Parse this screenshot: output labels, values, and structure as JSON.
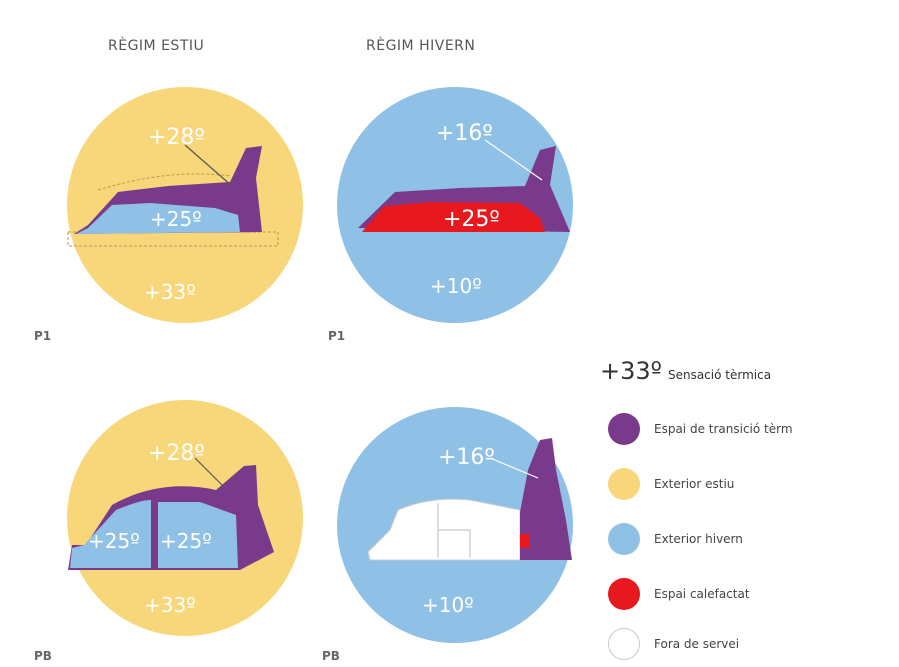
{
  "columns": {
    "summer": "RÈGIM ESTIU",
    "winter": "RÈGIM HIVERN"
  },
  "floors": {
    "upper": "P1",
    "ground": "PB"
  },
  "temperatures": {
    "summer_p1": {
      "transition": "+28º",
      "inside": "+25º",
      "outside": "+33º"
    },
    "winter_p1": {
      "transition": "+16º",
      "inside": "+25º",
      "outside": "+10º"
    },
    "summer_pb": {
      "transition": "+28º",
      "inside_left": "+25º",
      "inside_right": "+25º",
      "outside": "+33º"
    },
    "winter_pb": {
      "transition": "+16º",
      "outside": "+10º"
    }
  },
  "legend": {
    "sample_value": "+33º",
    "sample_label": "Sensació tèrmica",
    "items": [
      {
        "label": "Espai de transició tèrm",
        "color": "#7a3a8c"
      },
      {
        "label": "Exterior estiu",
        "color": "#f8d77a"
      },
      {
        "label": "Exterior hivern",
        "color": "#8fc1e6"
      },
      {
        "label": "Espai calefactat",
        "color": "#e8191e"
      },
      {
        "label": "Fora de servei",
        "color": "#ffffff"
      }
    ]
  },
  "colors": {
    "summer": "#f8d77a",
    "winter": "#8fc1e6",
    "transition": "#7a3a8c",
    "heated": "#e8191e",
    "interior_cool": "#8fc1e6"
  }
}
